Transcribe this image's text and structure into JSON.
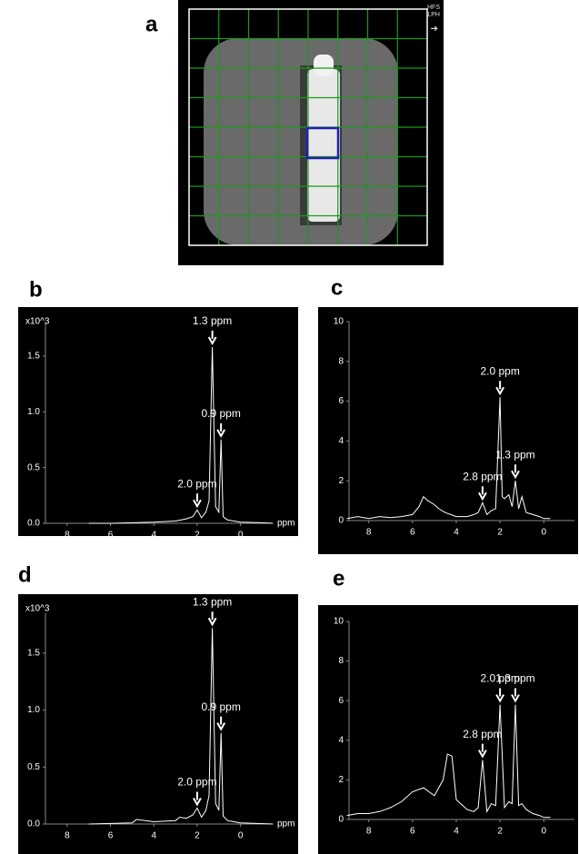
{
  "image_panel": {
    "label": "a",
    "annotations": [
      "HFS",
      "LPH"
    ]
  },
  "chart_data": [
    {
      "type": "line",
      "panel": "b",
      "y_unit": "x10^3",
      "xlabel": "ppm",
      "color": "#ffffff",
      "x": [
        7,
        6,
        5,
        4,
        3,
        2.5,
        2.2,
        2.0,
        1.8,
        1.6,
        1.45,
        1.3,
        1.15,
        1.0,
        0.9,
        0.8,
        0.6,
        0.3,
        0,
        -1,
        -1.5
      ],
      "values": [
        0,
        0,
        0.005,
        0.01,
        0.02,
        0.04,
        0.06,
        0.12,
        0.05,
        0.1,
        0.2,
        1.58,
        0.15,
        0.1,
        0.75,
        0.06,
        0.03,
        0.02,
        0.01,
        0.005,
        0
      ],
      "xlim": [
        9,
        -1.4
      ],
      "ylim": [
        0,
        1.8
      ],
      "xticks": [
        8,
        6,
        4,
        2,
        0
      ],
      "yticks": [
        {
          "value": 0,
          "label": "0.0"
        },
        {
          "value": 0.5,
          "label": "0.5"
        },
        {
          "value": 1,
          "label": "1.0"
        },
        {
          "value": 1.5,
          "label": "1.5"
        }
      ],
      "annotations": [
        {
          "text": "1.3 ppm",
          "x": 1.3,
          "y": 1.58
        },
        {
          "text": "0.9 ppm",
          "x": 0.9,
          "y": 0.75
        },
        {
          "text": "2.0 ppm",
          "x": 2.0,
          "y": 0.12
        }
      ]
    },
    {
      "type": "line",
      "panel": "c",
      "color": "#ffffff",
      "x": [
        9,
        8.5,
        8,
        7.5,
        7,
        6.5,
        6,
        5.7,
        5.5,
        5.3,
        5,
        4.8,
        4.5,
        4,
        3.5,
        3.2,
        3,
        2.8,
        2.6,
        2.4,
        2.2,
        2.0,
        1.9,
        1.8,
        1.6,
        1.45,
        1.3,
        1.15,
        1,
        0.8,
        0.5,
        0.2,
        0,
        -0.3
      ],
      "values": [
        0.1,
        0.2,
        0.1,
        0.2,
        0.15,
        0.2,
        0.3,
        0.7,
        1.2,
        1.0,
        0.8,
        0.6,
        0.4,
        0.2,
        0.2,
        0.3,
        0.4,
        0.9,
        0.3,
        0.5,
        0.6,
        6.2,
        1.2,
        1.1,
        1.3,
        0.7,
        2.0,
        0.6,
        1.2,
        0.4,
        0.3,
        0.2,
        0.1,
        0.1
      ],
      "xlim": [
        8.9,
        -1.4
      ],
      "ylim": [
        0,
        10
      ],
      "xticks": [
        8,
        6,
        4,
        2,
        0
      ],
      "yticks": [
        0,
        2,
        4,
        6,
        8,
        10
      ],
      "annotations": [
        {
          "text": "2.0 ppm",
          "x": 2.0,
          "y": 6.2
        },
        {
          "text": "2.8 ppm",
          "x": 2.8,
          "y": 0.9
        },
        {
          "text": "1.3 ppm",
          "x": 1.3,
          "y": 2.0
        }
      ]
    },
    {
      "type": "line",
      "panel": "d",
      "y_unit": "x10^3",
      "xlabel": "ppm",
      "color": "#ffffff",
      "x": [
        7,
        6,
        5,
        4.8,
        4,
        3,
        2.8,
        2.5,
        2.2,
        2.0,
        1.8,
        1.6,
        1.45,
        1.3,
        1.15,
        1.0,
        0.9,
        0.8,
        0.6,
        0.3,
        0,
        -1.5
      ],
      "values": [
        0,
        0.005,
        0.01,
        0.04,
        0.02,
        0.03,
        0.06,
        0.05,
        0.08,
        0.14,
        0.06,
        0.12,
        0.25,
        1.72,
        0.18,
        0.12,
        0.8,
        0.07,
        0.03,
        0.02,
        0.01,
        0
      ],
      "xlim": [
        9,
        -1.4
      ],
      "ylim": [
        0,
        1.85
      ],
      "xticks": [
        8,
        6,
        4,
        2,
        0
      ],
      "yticks": [
        {
          "value": 0,
          "label": "0.0"
        },
        {
          "value": 0.5,
          "label": "0.5"
        },
        {
          "value": 1,
          "label": "1.0"
        },
        {
          "value": 1.5,
          "label": "1.5"
        }
      ],
      "annotations": [
        {
          "text": "1.3 ppm",
          "x": 1.3,
          "y": 1.72
        },
        {
          "text": "0.9 ppm",
          "x": 0.9,
          "y": 0.8
        },
        {
          "text": "2.0 ppm",
          "x": 2.0,
          "y": 0.14
        }
      ]
    },
    {
      "type": "line",
      "panel": "e",
      "color": "#ffffff",
      "x": [
        9,
        8.5,
        8,
        7.5,
        7,
        6.5,
        6,
        5.5,
        5,
        4.6,
        4.4,
        4.2,
        4,
        3.5,
        3.2,
        3,
        2.8,
        2.6,
        2.4,
        2.2,
        2.0,
        1.8,
        1.6,
        1.45,
        1.3,
        1.15,
        1,
        0.8,
        0.5,
        0.2,
        0,
        -0.3
      ],
      "values": [
        0.2,
        0.3,
        0.3,
        0.4,
        0.6,
        0.9,
        1.4,
        1.6,
        1.2,
        2.0,
        3.3,
        3.2,
        1.0,
        0.5,
        0.4,
        0.6,
        3.0,
        0.4,
        0.8,
        0.7,
        5.8,
        0.6,
        0.9,
        0.8,
        5.8,
        0.7,
        0.8,
        0.5,
        0.3,
        0.2,
        0.1,
        0.1
      ],
      "xlim": [
        8.9,
        -1.4
      ],
      "ylim": [
        0,
        10
      ],
      "xticks": [
        8,
        6,
        4,
        2,
        0
      ],
      "yticks": [
        0,
        2,
        4,
        6,
        8,
        10
      ],
      "annotations": [
        {
          "text": "2.0 ppm",
          "x": 2.0,
          "y": 5.8
        },
        {
          "text": "1.3 ppm",
          "x": 1.3,
          "y": 5.8
        },
        {
          "text": "2.8 ppm",
          "x": 2.8,
          "y": 3.0
        }
      ]
    }
  ]
}
